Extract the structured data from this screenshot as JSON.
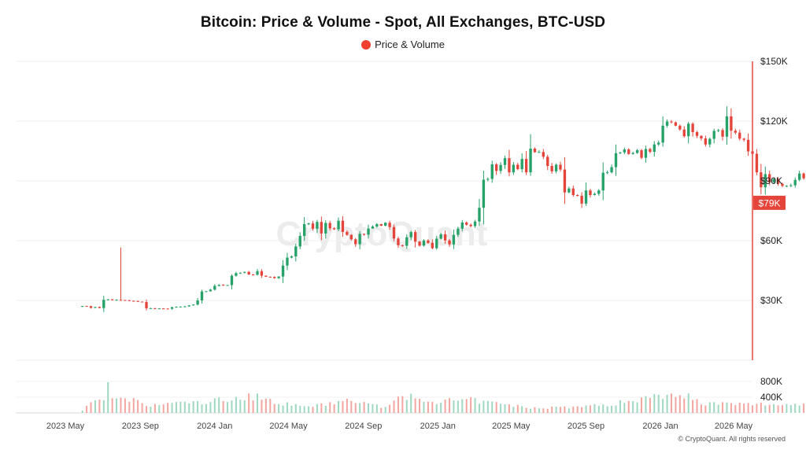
{
  "chart_data": {
    "type": "candlestick",
    "title": "Bitcoin: Price & Volume - Spot, All Exchanges, BTC-USD",
    "legend": {
      "label": "Price & Volume",
      "color": "#f03e2f",
      "placement": "top-center"
    },
    "watermark": "CryptoQuant",
    "footer": "© CryptoQuant. All rights reserved",
    "colors": {
      "up": "#26a269",
      "down": "#e5443a",
      "up_volume": "#9fd8c0",
      "down_volume": "#f3a6a0",
      "current_tag": "#e5443a"
    },
    "price_axis": {
      "position": "right",
      "ylim": [
        0,
        150000
      ],
      "ticks": [
        30000,
        60000,
        90000,
        120000,
        150000
      ],
      "tick_labels": [
        "$30K",
        "$60K",
        "$90K",
        "$120K",
        "$150K"
      ]
    },
    "volume_axis": {
      "position": "right",
      "ylim": [
        0,
        900000
      ],
      "ticks": [
        400000,
        800000
      ],
      "tick_labels": [
        "400K",
        "800K"
      ]
    },
    "x_axis": {
      "ticks": [
        "2023 May",
        "2023 Sep",
        "2024 Jan",
        "2024 May",
        "2024 Sep",
        "2025 Jan",
        "2025 May",
        "2025 Sep",
        "2026 Jan",
        "2026 May"
      ]
    },
    "current_price_label": "$79K",
    "current_price": 79000,
    "interval": "weekly",
    "start": "2023-05-29",
    "closes": [
      27200,
      27100,
      26300,
      26700,
      26200,
      30300,
      30500,
      30100,
      30300,
      30200,
      30100,
      29800,
      29700,
      29400,
      29200,
      26100,
      26100,
      25800,
      26000,
      25900,
      25800,
      26600,
      26800,
      26900,
      27000,
      27500,
      27900,
      30000,
      34500,
      34600,
      35400,
      37300,
      37800,
      37600,
      37700,
      42400,
      43700,
      43900,
      44300,
      43000,
      42900,
      44700,
      42400,
      41900,
      41800,
      41200,
      42000,
      47500,
      51500,
      52100,
      57100,
      62400,
      68300,
      68600,
      66000,
      69400,
      63600,
      68900,
      66200,
      65700,
      70000,
      64400,
      62900,
      60700,
      58200,
      63400,
      63000,
      66100,
      67100,
      68300,
      67500,
      69000,
      66800,
      61100,
      57700,
      57400,
      61700,
      64300,
      59500,
      57500,
      60100,
      58900,
      56200,
      61000,
      63200,
      60100,
      58100,
      62900,
      66000,
      69100,
      68000,
      67300,
      69600,
      76500,
      90600,
      91000,
      98300,
      95000,
      98000,
      101400,
      94300,
      98100,
      95900,
      101000,
      94300,
      106200,
      104400,
      104500,
      102100,
      97500,
      94800,
      98100,
      95700,
      84200,
      86200,
      82900,
      82500,
      78600,
      85200,
      82900,
      83500,
      85200,
      94100,
      94300,
      96900,
      103900,
      104300,
      105800,
      103500,
      104000,
      105400,
      101600,
      106000,
      104600,
      108300,
      109200,
      117700,
      119800,
      119400,
      117700,
      115800,
      112400,
      118700,
      114500,
      112600,
      111300,
      108300,
      111100,
      115100,
      115500,
      112200,
      122400,
      115200,
      114200,
      111200,
      110600,
      104800,
      103600,
      94300,
      86800,
      93400,
      89300,
      91000,
      88500,
      87500,
      87500,
      87800,
      90500,
      93700,
      91300,
      94500,
      87600,
      78600,
      70200,
      69900,
      68700,
      65300,
      67800,
      69900,
      67400,
      66400,
      67300,
      64700,
      67400,
      68800,
      70100,
      73200,
      75900,
      76600,
      78000,
      79000
    ],
    "volume_samples": [
      {
        "x": "2023-06-05",
        "v": 180000
      },
      {
        "x": "2023-07-03",
        "v": 420000
      },
      {
        "x": "2023-07-31",
        "v": 320000
      },
      {
        "x": "2023-08-21",
        "v": 310000
      },
      {
        "x": "2023-09-18",
        "v": 170000
      },
      {
        "x": "2023-10-23",
        "v": 260000
      },
      {
        "x": "2023-11-20",
        "v": 260000
      },
      {
        "x": "2023-12-18",
        "v": 260000
      },
      {
        "x": "2024-01-08",
        "v": 330000
      },
      {
        "x": "2024-03-04",
        "v": 420000
      },
      {
        "x": "2024-03-18",
        "v": 380000
      },
      {
        "x": "2024-05-06",
        "v": 190000
      },
      {
        "x": "2024-06-17",
        "v": 180000
      },
      {
        "x": "2024-08-05",
        "v": 320000
      },
      {
        "x": "2024-09-30",
        "v": 160000
      },
      {
        "x": "2024-11-11",
        "v": 420000
      },
      {
        "x": "2024-12-16",
        "v": 290000
      },
      {
        "x": "2025-02-24",
        "v": 320000
      },
      {
        "x": "2025-04-07",
        "v": 240000
      },
      {
        "x": "2025-06-02",
        "v": 130000
      },
      {
        "x": "2025-08-04",
        "v": 150000
      },
      {
        "x": "2025-10-06",
        "v": 200000
      },
      {
        "x": "2025-11-17",
        "v": 330000
      },
      {
        "x": "2026-02-02",
        "v": 530000
      },
      {
        "x": "2026-03-09",
        "v": 250000
      },
      {
        "x": "2026-04-27",
        "v": 220000
      }
    ]
  }
}
